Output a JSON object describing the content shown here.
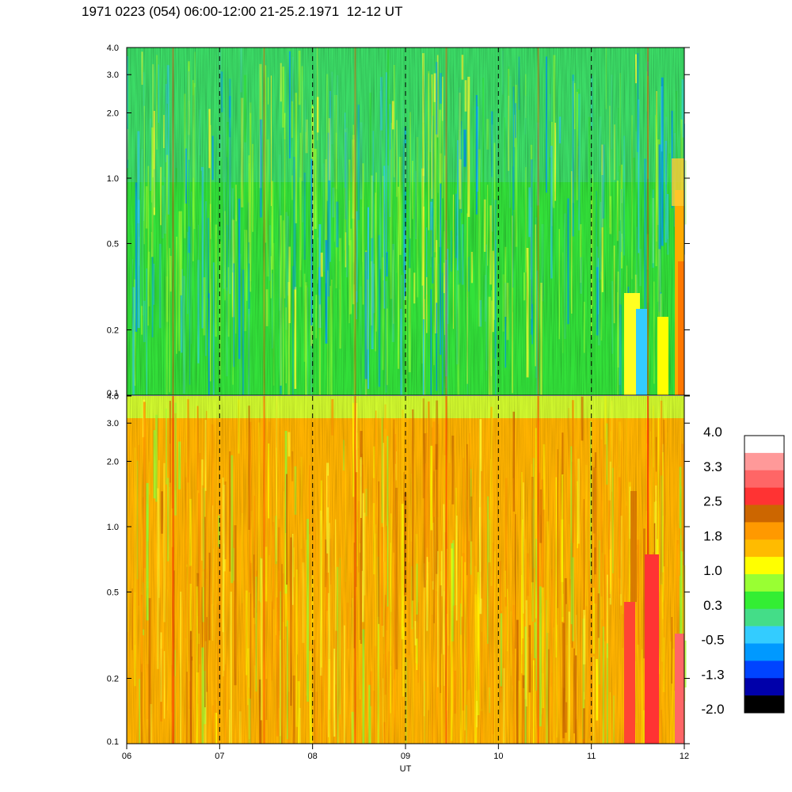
{
  "title": "1971 0223 (054) 06:00-12:00 21-25.2.1971  12-12 UT",
  "chart_data": {
    "type": "heatmap",
    "x": {
      "label": "UT",
      "range": [
        6,
        12
      ],
      "ticks": [
        "06",
        "07",
        "08",
        "09",
        "10",
        "11",
        "12"
      ],
      "dashed_lines_at": [
        7,
        8,
        9,
        10,
        11
      ]
    },
    "panels": [
      {
        "name": "upper",
        "y_scale": "log",
        "y_range": [
          0.1,
          4.0
        ],
        "y_ticks": [
          0.1,
          0.2,
          0.5,
          1.0,
          2.0,
          3.0,
          4.0
        ],
        "y_tick_labels": [
          "0.1",
          "0.2",
          "0.5",
          "1.0",
          "2.0",
          "3.0",
          "4.0"
        ],
        "dominant_level": 0.3,
        "notes": "mostly green with cyan/blue streaks above 1.0; yellow-orange-red near 11:30-12:00 below 1.0"
      },
      {
        "name": "lower",
        "y_scale": "log",
        "y_range": [
          0.1,
          4.0
        ],
        "y_ticks": [
          0.1,
          0.2,
          0.5,
          1.0,
          2.0,
          3.0,
          4.0
        ],
        "y_tick_labels": [
          "0.1",
          "0.2",
          "0.5",
          "1.0",
          "2.0",
          "3.0",
          "4.0"
        ],
        "dominant_level": 1.5,
        "notes": "mostly orange/yellow with green speckle above 2.0; red near 11:30-12:00"
      }
    ],
    "colorbar": {
      "labels": [
        "4.0",
        "3.3",
        "2.5",
        "1.8",
        "1.0",
        "0.3",
        "-0.5",
        "-1.3",
        "-2.0"
      ],
      "colors_top_to_bottom": [
        "#ffffff",
        "#ff9999",
        "#ff6666",
        "#ff3333",
        "#cc6600",
        "#ff9900",
        "#ffbb00",
        "#ffff00",
        "#99ff33",
        "#33ee33",
        "#44dd88",
        "#33ccff",
        "#0099ff",
        "#0044ff",
        "#0000aa",
        "#000000"
      ]
    }
  }
}
